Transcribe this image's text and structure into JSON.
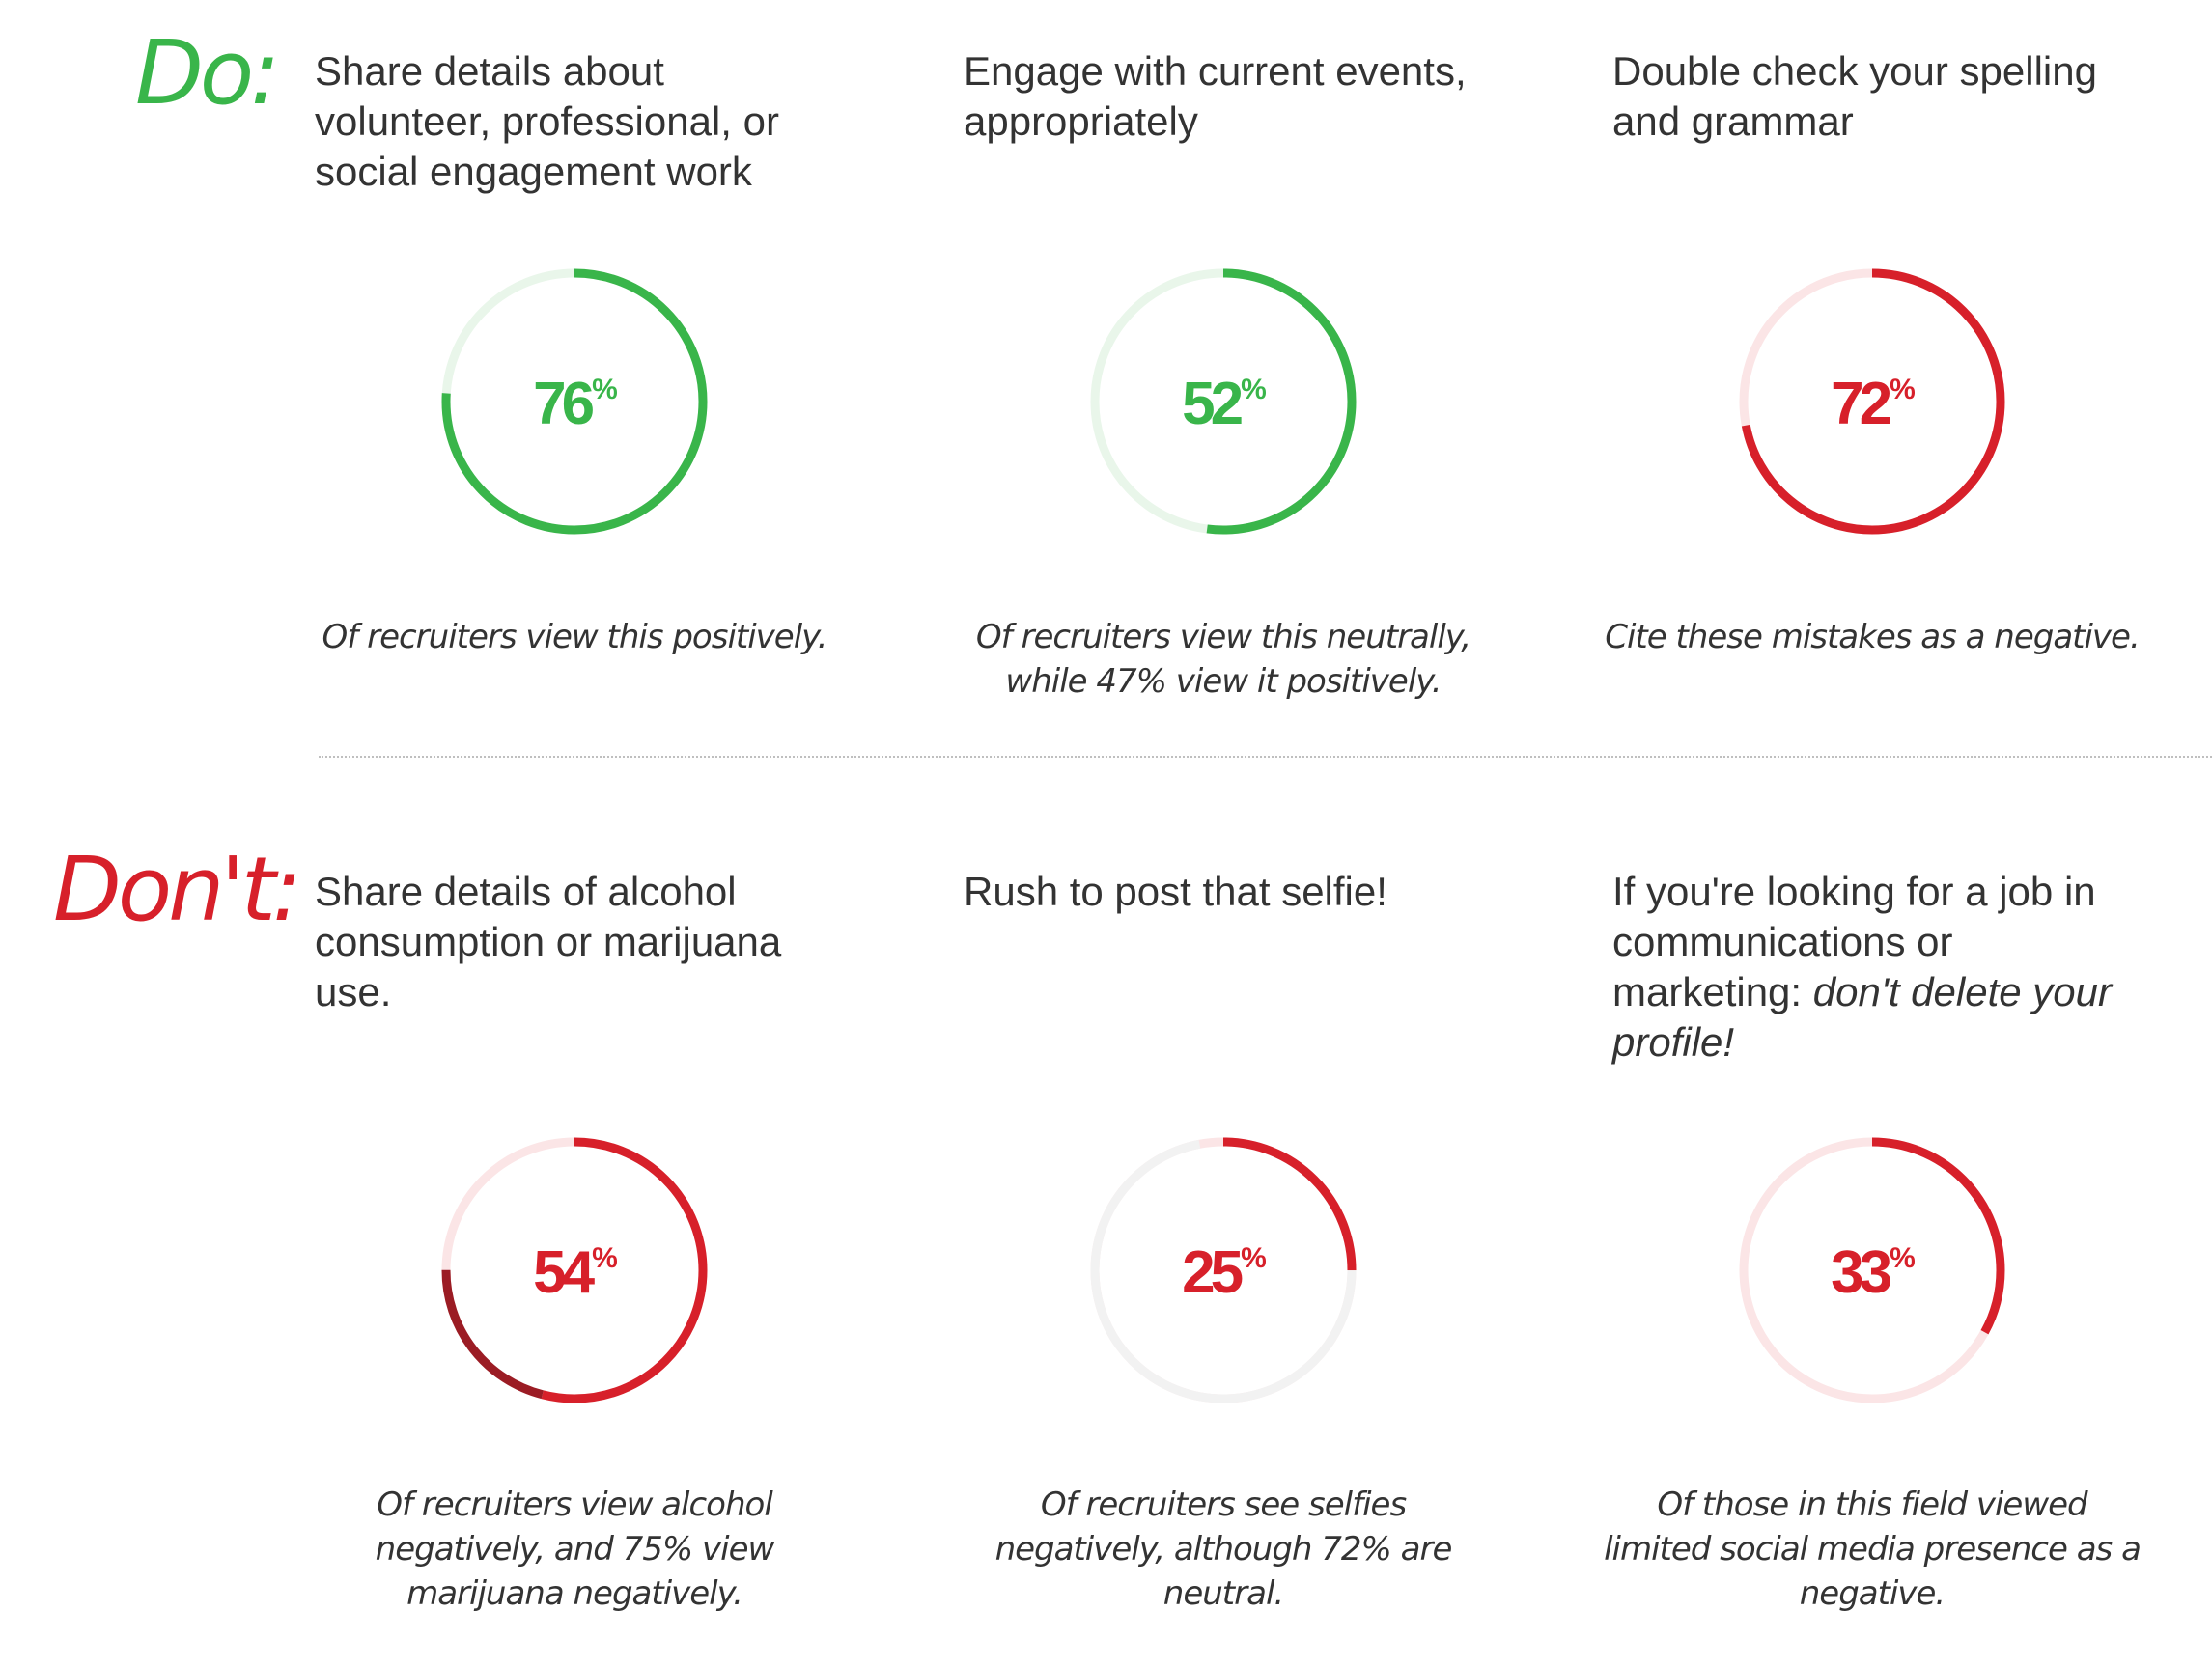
{
  "do_label": "Do:",
  "dont_label": "Don't:",
  "chart_data": [
    {
      "type": "donut",
      "section": "Do",
      "heading": "Share details about volunteer, professional, or social engagement work",
      "value": 76,
      "percent_text": "76",
      "percent_sign": "%",
      "caption": "Of recruiters view this positively.",
      "color": "#39b54a",
      "track": "#e9f6ea"
    },
    {
      "type": "donut",
      "section": "Do",
      "heading": "Engage with current events, appropriately",
      "value": 52,
      "percent_text": "52",
      "percent_sign": "%",
      "caption": "Of recruiters view this neutrally, while 47% view it positively.",
      "color": "#39b54a",
      "track": "#e9f6ea"
    },
    {
      "type": "donut",
      "section": "Do",
      "heading": "Double check your spelling and grammar",
      "value": 72,
      "percent_text": "72",
      "percent_sign": "%",
      "caption": "Cite these mistakes as a negative.",
      "color": "#d7202a",
      "track": "#fbe5e6"
    },
    {
      "type": "donut",
      "section": "Don't",
      "heading": "Share details of alcohol consumption or marijuana use.",
      "value": 54,
      "secondary_value": 21,
      "secondary_color": "#9b1c24",
      "percent_text": "54",
      "percent_sign": "%",
      "caption": "Of recruiters  view alcohol negatively, and 75% view marijuana negatively.",
      "color": "#d7202a",
      "track": "#fbe5e6"
    },
    {
      "type": "donut",
      "section": "Don't",
      "heading": "Rush to post that selfie!",
      "value": 25,
      "secondary_value": 72,
      "secondary_color": "#f2f2f2",
      "percent_text": "25",
      "percent_sign": "%",
      "caption": "Of recruiters see selfies negatively, although 72% are neutral.",
      "color": "#d7202a",
      "track": "#fbe5e6"
    },
    {
      "type": "donut",
      "section": "Don't",
      "heading": "If you're looking for a job in communications or marketing: ",
      "heading_emphasis": "don't delete your profile!",
      "value": 33,
      "percent_text": "33",
      "percent_sign": "%",
      "caption": "Of those in this field viewed limited social media presence as a negative.",
      "color": "#d7202a",
      "track": "#fbe5e6"
    }
  ]
}
